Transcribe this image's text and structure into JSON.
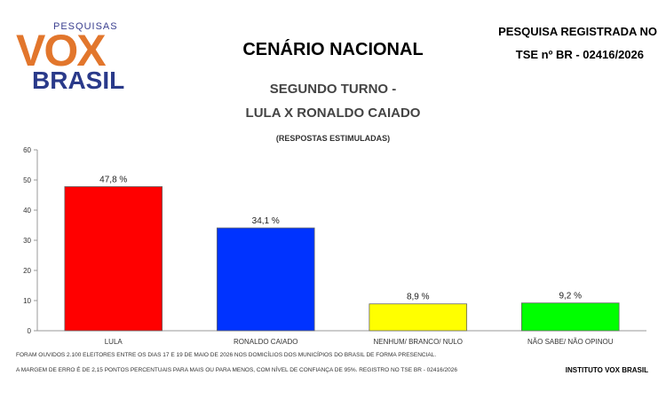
{
  "header": {
    "logo_small": "PESQUISAS",
    "logo_main": "VOX",
    "logo_bottom": "BRASIL",
    "title": "CENÁRIO NACIONAL",
    "registration_line1": "PESQUISA REGISTRADA NO",
    "registration_line2": "TSE nº BR - 02416/2026",
    "subtitle_line1": "SEGUNDO TURNO -",
    "subtitle_line2": "LULA X RONALDO CAIADO",
    "subtitle_line3": "(RESPOSTAS ESTIMULADAS)"
  },
  "footer": {
    "note1": "FORAM OUVIDOS 2.100 ELEITORES ENTRE OS DIAS 17 E 19 DE MAIO DE 2026 NOS DOMICÍLIOS DOS MUNICÍPIOS DO BRASIL DE FORMA PRESENCIAL.",
    "note2": "A MARGEM DE ERRO É DE 2,15 PONTOS PERCENTUAIS PARA MAIS OU PARA MENOS, COM NÍVEL DE CONFIANÇA DE 95%. REGISTRO NO TSE BR - 02416/2026",
    "institute": "INSTITUTO VOX BRASIL"
  },
  "chart_data": {
    "type": "bar",
    "categories": [
      "LULA",
      "RONALDO CAIADO",
      "NENHUM/ BRANCO/ NULO",
      "NÃO SABE/ NÃO OPINOU"
    ],
    "values": [
      47.8,
      34.1,
      8.9,
      9.2
    ],
    "value_labels": [
      "47,8 %",
      "34,1 %",
      "8,9 %",
      "9,2 %"
    ],
    "colors": [
      "#ff0000",
      "#0033ff",
      "#ffff00",
      "#00ff00"
    ],
    "yticks": [
      0,
      10,
      20,
      30,
      40,
      50,
      60
    ],
    "ylim": [
      0,
      60
    ],
    "grid": false,
    "legend": "none"
  }
}
